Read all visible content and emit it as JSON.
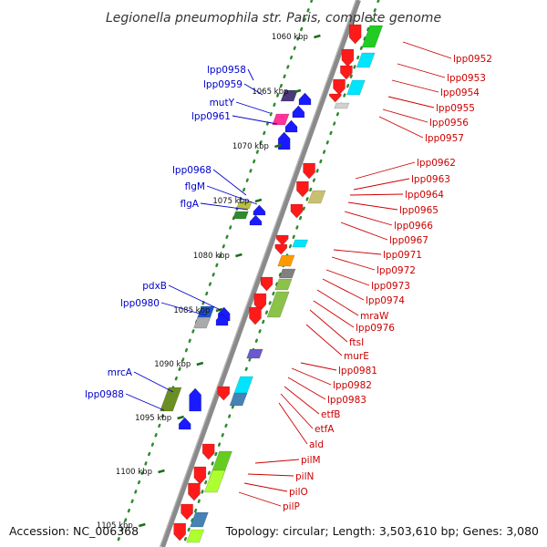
{
  "title": "Legionella pneumophila str. Paris, complete genome",
  "accession": "Accession: NC_006368",
  "summary": "Topology: circular; Length: 3,503,610 bp; Genes: 3,080",
  "colors": {
    "backbone": "#8a8a8a",
    "tick": "#1a6e1a",
    "dots": "#2e8b2e",
    "reverse_label": "#0000cc",
    "forward_label": "#cc0000"
  },
  "scale_ticks": [
    "1060 kbp",
    "1065 kbp",
    "1070 kbp",
    "1075 kbp",
    "1080 kbp",
    "1085 kbp",
    "1090 kbp",
    "1095 kbp",
    "1100 kbp",
    "1105 kbp"
  ],
  "reverse_strand_labels": [
    "lpp0958",
    "lpp0959",
    "mutY",
    "lpp0961",
    "lpp0968",
    "flgM",
    "flgA",
    "pdxB",
    "lpp0980",
    "mrcA",
    "lpp0988"
  ],
  "forward_strand_labels": [
    "lpp0952",
    "lpp0953",
    "lpp0954",
    "lpp0955",
    "lpp0956",
    "lpp0957",
    "lpp0962",
    "lpp0963",
    "lpp0964",
    "lpp0965",
    "lpp0966",
    "lpp0967",
    "lpp0971",
    "lpp0972",
    "lpp0973",
    "lpp0974",
    "mraW",
    "lpp0976",
    "ftsI",
    "murE",
    "lpp0981",
    "lpp0982",
    "lpp0983",
    "etfB",
    "etfA",
    "ald",
    "pilM",
    "pilN",
    "pilO",
    "pilP"
  ]
}
